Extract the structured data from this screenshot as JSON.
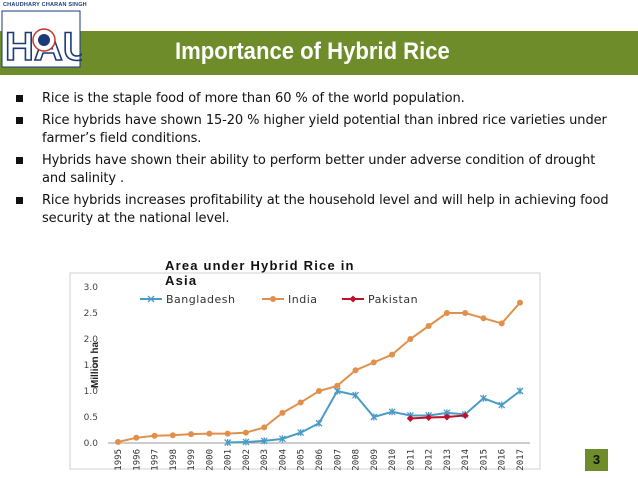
{
  "logo": {
    "caption": "CHAUDHARY CHARAN SINGH",
    "name": "HAU",
    "colors": {
      "blue": "#1b3a7a",
      "red": "#c0392b"
    }
  },
  "slide": {
    "title": "Importance  of Hybrid Rice",
    "page_number": "3",
    "accent_color": "#6e8c2a"
  },
  "bullets": [
    {
      "text": "Rice is the staple food of more than 60 % of the world population."
    },
    {
      "text": "Rice hybrids have shown 15-20 % higher yield potential than inbred rice varieties under farmer’s field conditions."
    },
    {
      "text": "Hybrids have shown their ability to perform better under adverse condition of drought and salinity ."
    },
    {
      "text": "Rice hybrids increases profitability at the household level and will help in achieving food security at the national level."
    }
  ],
  "chart_data": {
    "type": "line",
    "title": "Area under Hybrid Rice in Asia",
    "ylabel": "Million ha",
    "xlabel": "",
    "ylim": [
      0,
      3
    ],
    "yticks": [
      "0.0",
      "0.5",
      "1.0",
      "1.5",
      "2.0",
      "2.5",
      "3.0"
    ],
    "grid": false,
    "legend": "top",
    "x": [
      "1995",
      "1996",
      "1997",
      "1998",
      "1999",
      "2000",
      "2001",
      "2002",
      "2003",
      "2004",
      "2005",
      "2006",
      "2007",
      "2008",
      "2009",
      "2010",
      "2011",
      "2012",
      "2013",
      "2014",
      "2015",
      "2016",
      "2017"
    ],
    "series": [
      {
        "name": "Bangladesh",
        "color": "#4a9bc6",
        "marker": "x",
        "values": [
          null,
          null,
          null,
          null,
          null,
          null,
          0.01,
          0.02,
          0.04,
          0.08,
          0.2,
          0.38,
          1.0,
          0.92,
          0.5,
          0.6,
          0.53,
          0.53,
          0.58,
          0.55,
          0.86,
          0.73,
          1.0
        ]
      },
      {
        "name": "India",
        "color": "#e0904a",
        "marker": "circle",
        "values": [
          0.02,
          0.1,
          0.14,
          0.15,
          0.17,
          0.18,
          0.18,
          0.2,
          0.3,
          0.58,
          0.78,
          1.0,
          1.1,
          1.4,
          1.55,
          1.7,
          2.0,
          2.25,
          2.5,
          2.5,
          2.4,
          2.3,
          2.7
        ]
      },
      {
        "name": "Pakistan",
        "color": "#c0102a",
        "marker": "diamond",
        "values": [
          null,
          null,
          null,
          null,
          null,
          null,
          null,
          null,
          null,
          null,
          null,
          null,
          null,
          null,
          null,
          null,
          0.47,
          0.49,
          0.5,
          0.53,
          null,
          null,
          null
        ]
      }
    ]
  }
}
